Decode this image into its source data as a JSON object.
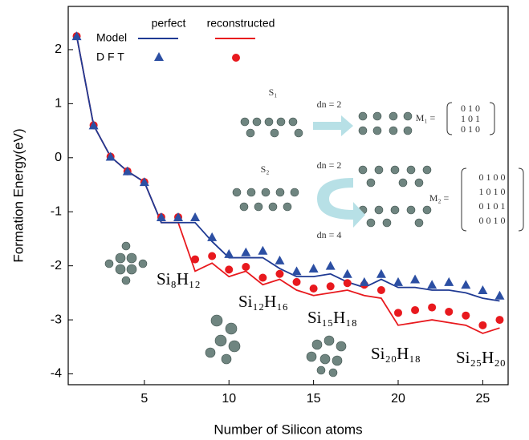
{
  "chart_data": {
    "type": "line",
    "xlabel": "Number of Silicon atoms",
    "ylabel": "Formation Energy(eV)",
    "x": [
      1,
      2,
      3,
      4,
      5,
      6,
      7,
      8,
      9,
      10,
      11,
      12,
      13,
      14,
      15,
      16,
      17,
      18,
      19,
      20,
      21,
      22,
      23,
      24,
      25,
      26
    ],
    "series": [
      {
        "marker": "line",
        "color": "#1f3a93",
        "values": [
          2.25,
          0.6,
          0.02,
          -0.25,
          -0.45,
          -1.2,
          -1.2,
          -1.2,
          -1.55,
          -1.85,
          -1.85,
          -1.85,
          -2.05,
          -2.2,
          -2.2,
          -2.15,
          -2.3,
          -2.4,
          -2.25,
          -2.4,
          -2.4,
          -2.45,
          -2.45,
          -2.5,
          -2.6,
          -2.65
        ]
      },
      {
        "marker": "line",
        "color": "#e8191e",
        "values": [
          2.25,
          0.6,
          0.02,
          -0.25,
          -0.45,
          -1.2,
          -1.2,
          -2.1,
          -1.95,
          -2.2,
          -2.1,
          -2.35,
          -2.25,
          -2.45,
          -2.55,
          -2.5,
          -2.45,
          -2.55,
          -2.6,
          -3.1,
          -3.05,
          -3.0,
          -3.05,
          -3.1,
          -3.25,
          -3.15
        ]
      },
      {
        "marker": "triangle",
        "color": "#2c4fa3",
        "values": [
          2.25,
          0.6,
          0.02,
          -0.25,
          -0.45,
          -1.1,
          -1.1,
          -1.1,
          -1.47,
          -1.78,
          -1.75,
          -1.72,
          -1.9,
          -2.1,
          -2.05,
          -2.0,
          -2.15,
          -2.3,
          -2.15,
          -2.3,
          -2.25,
          -2.35,
          -2.3,
          -2.35,
          -2.45,
          -2.55
        ]
      },
      {
        "marker": "circle",
        "color": "#e8191e",
        "values": [
          2.25,
          0.6,
          0.02,
          -0.25,
          -0.45,
          -1.1,
          -1.1,
          -1.88,
          -1.82,
          -2.07,
          -2.02,
          -2.22,
          -2.15,
          -2.3,
          -2.42,
          -2.38,
          -2.32,
          -2.35,
          -2.45,
          -2.87,
          -2.82,
          -2.77,
          -2.85,
          -2.92,
          -3.1,
          -3.0
        ]
      }
    ],
    "legend": {
      "columns": [
        "perfect",
        "reconstructed"
      ],
      "rows": [
        "Model",
        "D F T"
      ]
    },
    "xlim": [
      0.5,
      26.5
    ],
    "xticks": [
      5,
      10,
      15,
      20,
      25
    ],
    "ylim": [
      -4.2,
      2.8
    ],
    "yticks": [
      2,
      1,
      0,
      -1,
      -2,
      -3,
      -4
    ],
    "annotations": [
      "Si₈H₁₂",
      "Si₁₂H₁₆",
      "Si₁₅H₁₈",
      "Si₂₀H₁₈",
      "Si₂₅H₂₀"
    ],
    "inset": {
      "labels": [
        "S₁",
        "S₂",
        "dn = 2",
        "dn = 2",
        "dn = 4",
        "M₁ =",
        "M₂ ="
      ],
      "m1": [
        "0  1  0",
        "1  0  1",
        "0  1  0"
      ],
      "m2": [
        "0  1  0  0",
        "1  0  1  0",
        "0  1  0  1",
        "0  0  1  0"
      ]
    }
  }
}
